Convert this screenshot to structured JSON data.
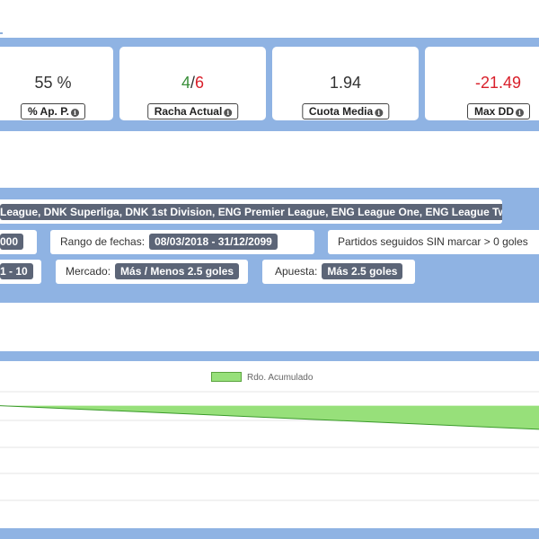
{
  "stats": [
    {
      "value": "55 %",
      "label": "% Ap. P."
    },
    {
      "value_good": "4",
      "value_sep": "/",
      "value_bad": "6",
      "label": "Racha Actual"
    },
    {
      "value": "1.94",
      "label": "Cuota Media"
    },
    {
      "value": "-21.49",
      "label": "Max DD"
    }
  ],
  "colors": {
    "panel_blue": "#8fb3e3",
    "chip_bg": "#5c6577",
    "good": "#3a8f3a",
    "bad": "#d9202b",
    "series_fill": "#97e07a",
    "series_line": "#3a9a2a"
  },
  "filters": {
    "leagues": "League, DNK Superliga, DNK 1st Division, ENG Premier League, ENG League One, ENG League Two ...",
    "odds_fragment": "000",
    "date_range_label": "Rango de fechas:",
    "date_range_value": "08/03/2018 - 31/12/2099",
    "streak_label": "Partidos seguidos SIN marcar > 0 goles",
    "streak_fragment": "1 - 10",
    "market_label": "Mercado:",
    "market_value": "Más / Menos 2.5 goles",
    "bet_label": "Apuesta:",
    "bet_value": "Más 2.5 goles"
  },
  "chart_data": {
    "type": "area",
    "legend": [
      "Rdo. Acumulado"
    ],
    "series": [
      {
        "name": "Rdo. Acumulado",
        "x": [
          0,
          1
        ],
        "values": [
          0,
          -1.5
        ]
      }
    ],
    "ylim": [
      -6,
      1
    ],
    "grid": true,
    "legend_position": "top"
  }
}
